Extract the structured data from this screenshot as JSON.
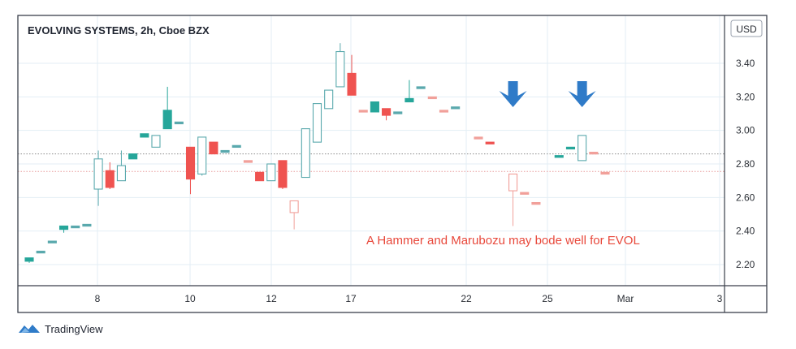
{
  "chart_data": {
    "type": "candlestick",
    "title": "EVOLVING SYSTEMS, 2h, Cboe BZX",
    "unit": "USD",
    "ylim": [
      2.08,
      3.54
    ],
    "y_ticks": [
      "2.20",
      "2.40",
      "2.60",
      "2.80",
      "3.00",
      "3.20",
      "3.40"
    ],
    "y_tick_values": [
      2.2,
      2.4,
      2.6,
      2.8,
      3.0,
      3.2,
      3.4
    ],
    "x_ticks": [
      "8",
      "10",
      "12",
      "17",
      "22",
      "25",
      "Mar",
      "3"
    ],
    "grid": true,
    "annotation": "A Hammer and Marubozu may bode well for EVOL",
    "colors": {
      "up": "#26a69a",
      "down": "#ef5350",
      "up_light": "#5aa9ad",
      "down_light": "#f1a09a",
      "arrow": "#2f7bc8",
      "annotation": "#e8483b"
    },
    "reference_lines": [
      {
        "value": 2.86,
        "color": "#8c8c8c"
      },
      {
        "value": 2.755,
        "color": "#e89a9a"
      }
    ],
    "arrows": [
      {
        "candle": 42
      },
      {
        "candle": 48
      }
    ],
    "candles": [
      {
        "o": 2.22,
        "h": 2.24,
        "l": 2.21,
        "c": 2.24,
        "style": "up"
      },
      {
        "o": 2.28,
        "h": 2.28,
        "l": 2.28,
        "c": 2.28,
        "style": "up-light"
      },
      {
        "o": 2.34,
        "h": 2.34,
        "l": 2.34,
        "c": 2.34,
        "style": "up-light"
      },
      {
        "o": 2.41,
        "h": 2.43,
        "l": 2.39,
        "c": 2.43,
        "style": "up"
      },
      {
        "o": 2.43,
        "h": 2.43,
        "l": 2.43,
        "c": 2.43,
        "style": "up-light"
      },
      {
        "o": 2.44,
        "h": 2.44,
        "l": 2.44,
        "c": 2.44,
        "style": "up-light"
      },
      {
        "o": 2.65,
        "h": 2.88,
        "l": 2.55,
        "c": 2.83,
        "style": "up-hollow"
      },
      {
        "o": 2.76,
        "h": 2.81,
        "l": 2.65,
        "c": 2.66,
        "style": "down"
      },
      {
        "o": 2.7,
        "h": 2.88,
        "l": 2.7,
        "c": 2.79,
        "style": "up-hollow"
      },
      {
        "o": 2.83,
        "h": 2.86,
        "l": 2.83,
        "c": 2.86,
        "style": "up"
      },
      {
        "o": 2.96,
        "h": 2.98,
        "l": 2.96,
        "c": 2.98,
        "style": "up"
      },
      {
        "o": 2.9,
        "h": 2.97,
        "l": 2.9,
        "c": 2.97,
        "style": "up-hollow"
      },
      {
        "o": 3.01,
        "h": 3.26,
        "l": 3.01,
        "c": 3.12,
        "style": "up"
      },
      {
        "o": 3.05,
        "h": 3.05,
        "l": 3.05,
        "c": 3.05,
        "style": "up-light"
      },
      {
        "o": 2.9,
        "h": 2.9,
        "l": 2.62,
        "c": 2.71,
        "style": "down"
      },
      {
        "o": 2.74,
        "h": 2.95,
        "l": 2.73,
        "c": 2.96,
        "style": "up-hollow"
      },
      {
        "o": 2.93,
        "h": 2.93,
        "l": 2.86,
        "c": 2.86,
        "style": "down"
      },
      {
        "o": 2.88,
        "h": 2.88,
        "l": 2.88,
        "c": 2.88,
        "style": "up-light"
      },
      {
        "o": 2.91,
        "h": 2.91,
        "l": 2.91,
        "c": 2.91,
        "style": "up-light"
      },
      {
        "o": 2.82,
        "h": 2.82,
        "l": 2.82,
        "c": 2.82,
        "style": "down-light"
      },
      {
        "o": 2.75,
        "h": 2.75,
        "l": 2.7,
        "c": 2.7,
        "style": "down"
      },
      {
        "o": 2.7,
        "h": 2.8,
        "l": 2.7,
        "c": 2.8,
        "style": "up-hollow"
      },
      {
        "o": 2.82,
        "h": 2.82,
        "l": 2.65,
        "c": 2.66,
        "style": "down"
      },
      {
        "o": 2.51,
        "h": 2.58,
        "l": 2.41,
        "c": 2.58,
        "style": "down-hollow"
      },
      {
        "o": 2.72,
        "h": 3.01,
        "l": 2.72,
        "c": 3.01,
        "style": "up-hollow"
      },
      {
        "o": 2.93,
        "h": 3.16,
        "l": 2.93,
        "c": 3.16,
        "style": "up-hollow"
      },
      {
        "o": 3.13,
        "h": 3.24,
        "l": 3.13,
        "c": 3.24,
        "style": "up-hollow"
      },
      {
        "o": 3.26,
        "h": 3.52,
        "l": 3.26,
        "c": 3.47,
        "style": "up-hollow"
      },
      {
        "o": 3.34,
        "h": 3.45,
        "l": 3.21,
        "c": 3.21,
        "style": "down"
      },
      {
        "o": 3.12,
        "h": 3.12,
        "l": 3.12,
        "c": 3.12,
        "style": "down-light"
      },
      {
        "o": 3.11,
        "h": 3.17,
        "l": 3.11,
        "c": 3.17,
        "style": "up"
      },
      {
        "o": 3.13,
        "h": 3.13,
        "l": 3.06,
        "c": 3.09,
        "style": "down"
      },
      {
        "o": 3.11,
        "h": 3.11,
        "l": 3.11,
        "c": 3.11,
        "style": "up-light"
      },
      {
        "o": 3.17,
        "h": 3.3,
        "l": 3.17,
        "c": 3.19,
        "style": "up"
      },
      {
        "o": 3.26,
        "h": 3.26,
        "l": 3.26,
        "c": 3.26,
        "style": "up-light"
      },
      {
        "o": 3.2,
        "h": 3.2,
        "l": 3.2,
        "c": 3.2,
        "style": "down-light"
      },
      {
        "o": 3.12,
        "h": 3.12,
        "l": 3.12,
        "c": 3.12,
        "style": "down-light"
      },
      {
        "o": 3.14,
        "h": 3.14,
        "l": 3.14,
        "c": 3.14,
        "style": "up-light"
      },
      null,
      {
        "o": 2.96,
        "h": 2.96,
        "l": 2.96,
        "c": 2.96,
        "style": "down-light"
      },
      {
        "o": 2.93,
        "h": 2.93,
        "l": 2.92,
        "c": 2.92,
        "style": "down"
      },
      null,
      {
        "o": 2.64,
        "h": 2.74,
        "l": 2.43,
        "c": 2.74,
        "style": "down-hollow"
      },
      {
        "o": 2.63,
        "h": 2.63,
        "l": 2.63,
        "c": 2.63,
        "style": "down-light"
      },
      {
        "o": 2.57,
        "h": 2.57,
        "l": 2.57,
        "c": 2.57,
        "style": "down-light"
      },
      null,
      {
        "o": 2.84,
        "h": 2.85,
        "l": 2.84,
        "c": 2.85,
        "style": "up"
      },
      {
        "o": 2.89,
        "h": 2.9,
        "l": 2.89,
        "c": 2.9,
        "style": "up"
      },
      {
        "o": 2.82,
        "h": 2.97,
        "l": 2.82,
        "c": 2.97,
        "style": "up-hollow"
      },
      {
        "o": 2.87,
        "h": 2.87,
        "l": 2.87,
        "c": 2.87,
        "style": "down-light"
      },
      {
        "o": 2.75,
        "h": 2.75,
        "l": 2.75,
        "c": 2.75,
        "style": "down-light"
      }
    ]
  },
  "brand": {
    "name": "TradingView"
  }
}
